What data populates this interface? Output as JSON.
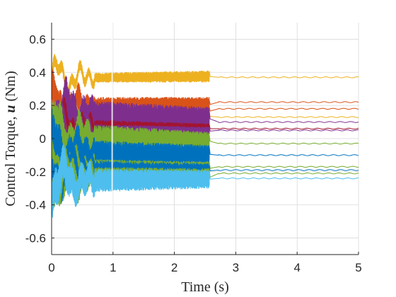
{
  "chart_data": {
    "type": "line",
    "xlabel": "Time (s)",
    "ylabel_parts": [
      "Control Torque, ",
      "u",
      " (Nm)"
    ],
    "xlim": [
      0,
      5
    ],
    "ylim": [
      -0.7,
      0.7
    ],
    "x_ticks": [
      0,
      1,
      2,
      3,
      4,
      5
    ],
    "x_tick_labels": [
      "0",
      "1",
      "2",
      "3",
      "4",
      "5"
    ],
    "y_ticks": [
      -0.6,
      -0.4,
      -0.2,
      0,
      0.2,
      0.4,
      0.6
    ],
    "y_tick_labels": [
      "-0.6",
      "-0.4",
      "-0.2",
      "0",
      "0.2",
      "0.4",
      "0.6"
    ],
    "grid": true,
    "switch_time": 2.57,
    "series": [
      {
        "color": "#EDB120",
        "band_start": [
          0.34,
          0.39
        ],
        "band_end": [
          0.34,
          0.41
        ],
        "steady": 0.37
      },
      {
        "color": "#D95319",
        "band_start": [
          0.15,
          0.25
        ],
        "band_end": [
          0.16,
          0.25
        ],
        "steady": 0.22
      },
      {
        "color": "#D95319",
        "band_start": [
          0.12,
          0.2
        ],
        "band_end": [
          0.13,
          0.2
        ],
        "steady": 0.18
      },
      {
        "color": "#EDB120",
        "band_start": [
          0.1,
          0.16
        ],
        "band_end": [
          0.11,
          0.16
        ],
        "steady": 0.13
      },
      {
        "color": "#7E2F8E",
        "band_start": [
          0.05,
          0.24
        ],
        "band_end": [
          0.05,
          0.19
        ],
        "steady": 0.1
      },
      {
        "color": "#A2142F",
        "band_start": [
          0.03,
          0.12
        ],
        "band_end": [
          0.03,
          0.09
        ],
        "steady": 0.06
      },
      {
        "color": "#7E2F8E",
        "band_start": [
          0.02,
          0.09
        ],
        "band_end": [
          0.02,
          0.07
        ],
        "steady": 0.05
      },
      {
        "color": "#77AC30",
        "band_start": [
          -0.08,
          0.1
        ],
        "band_end": [
          -0.07,
          0.04
        ],
        "steady": -0.03
      },
      {
        "color": "#0072BD",
        "band_start": [
          -0.18,
          0.0
        ],
        "band_end": [
          -0.15,
          -0.04
        ],
        "steady": -0.1
      },
      {
        "color": "#77AC30",
        "band_start": [
          -0.24,
          -0.12
        ],
        "band_end": [
          -0.22,
          -0.14
        ],
        "steady": -0.17
      },
      {
        "color": "#0072BD",
        "band_start": [
          -0.26,
          -0.13
        ],
        "band_end": [
          -0.24,
          -0.15
        ],
        "steady": -0.19
      },
      {
        "color": "#77AC30",
        "band_start": [
          -0.3,
          -0.17
        ],
        "band_end": [
          -0.29,
          -0.18
        ],
        "steady": -0.21
      },
      {
        "color": "#4DBEEE",
        "band_start": [
          -0.33,
          -0.18
        ],
        "band_end": [
          -0.3,
          -0.19
        ],
        "steady": -0.24
      }
    ]
  }
}
